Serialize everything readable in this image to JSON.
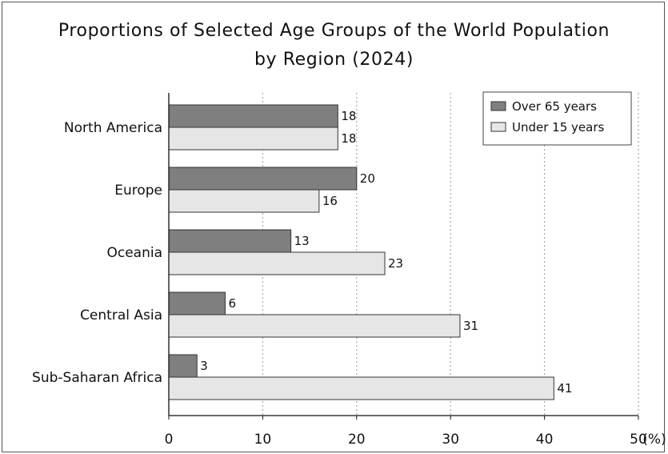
{
  "chart_data": {
    "type": "bar",
    "orientation": "horizontal",
    "title_lines": [
      "Proportions of Selected Age Groups of the World Population",
      "by Region (2024)"
    ],
    "categories": [
      "North America",
      "Europe",
      "Oceania",
      "Central Asia",
      "Sub-Saharan Africa"
    ],
    "series": [
      {
        "name": "Over 65 years",
        "values": [
          18,
          20,
          13,
          6,
          3
        ],
        "color": "#7f7f7f"
      },
      {
        "name": "Under 15 years",
        "values": [
          18,
          16,
          23,
          31,
          41
        ],
        "color": "#e6e6e6"
      }
    ],
    "x_ticks": [
      "0",
      "10",
      "20",
      "30",
      "40",
      "50"
    ],
    "x_unit": "(%)",
    "xlim": [
      0,
      50
    ],
    "grid": "vertical-dotted",
    "legend_position": "top-right"
  }
}
